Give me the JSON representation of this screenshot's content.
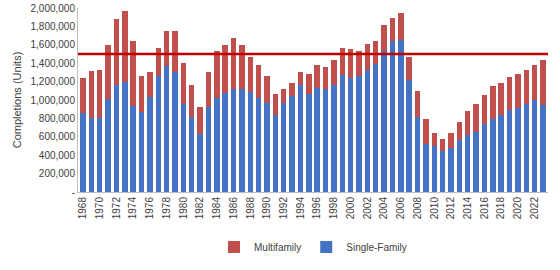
{
  "chart_data": {
    "type": "bar",
    "y_label": "Completions (Units)",
    "categories": [
      "1968",
      null,
      "1970",
      null,
      "1972",
      null,
      "1974",
      null,
      "1976",
      null,
      "1978",
      null,
      "1980",
      null,
      "1982",
      null,
      "1984",
      null,
      "1986",
      null,
      "1988",
      null,
      "1990",
      null,
      "1992",
      null,
      "1994",
      null,
      "1996",
      null,
      "1998",
      null,
      "2000",
      null,
      "2002",
      null,
      "2004",
      null,
      "2006",
      null,
      "2008",
      null,
      "2010",
      null,
      "2012",
      null,
      "2014",
      null,
      "2016",
      null,
      "2018",
      null,
      "2020",
      null,
      "2022",
      null
    ],
    "series": [
      {
        "name": "Single-Family",
        "color": "#4472c4",
        "values": [
          859000,
          807000,
          802000,
          1014000,
          1160000,
          1197000,
          940000,
          875000,
          1034000,
          1258000,
          1369000,
          1301000,
          957000,
          819000,
          632000,
          924000,
          1025000,
          1072000,
          1120000,
          1123000,
          1085000,
          1026000,
          966000,
          838000,
          964000,
          1039000,
          1160000,
          1066000,
          1129000,
          1116000,
          1160000,
          1270000,
          1242000,
          1256000,
          1325000,
          1386000,
          1532000,
          1636000,
          1654000,
          1218000,
          819000,
          520000,
          496000,
          447000,
          483000,
          569000,
          620000,
          648000,
          738000,
          795000,
          840000,
          887000,
          912000,
          961000,
          1005000,
          947000
        ]
      },
      {
        "name": "Multifamily",
        "color": "#c0504d",
        "values": [
          381000,
          503000,
          528000,
          586000,
          720000,
          773000,
          700000,
          385000,
          266000,
          302000,
          381000,
          449000,
          443000,
          341000,
          288000,
          376000,
          505000,
          528000,
          550000,
          477000,
          385000,
          354000,
          294000,
          222000,
          156000,
          141000,
          140000,
          214000,
          251000,
          244000,
          280000,
          300000,
          308000,
          274000,
          285000,
          254000,
          288000,
          254000,
          296000,
          252000,
          281000,
          270000,
          144000,
          133000,
          157000,
          191000,
          260000,
          312000,
          312000,
          355000,
          340000,
          363000,
          368000,
          369000,
          375000,
          493000
        ]
      }
    ],
    "stacked": true,
    "reference_line": 1500000,
    "ylim": [
      0,
      2000000
    ],
    "yticks": [
      {
        "value": 0,
        "label": "-"
      },
      {
        "value": 200000,
        "label": "200,000"
      },
      {
        "value": 400000,
        "label": "400,000"
      },
      {
        "value": 600000,
        "label": "600,000"
      },
      {
        "value": 800000,
        "label": "800,000"
      },
      {
        "value": 1000000,
        "label": "1,000,000"
      },
      {
        "value": 1200000,
        "label": "1,200,000"
      },
      {
        "value": 1400000,
        "label": "1,400,000"
      },
      {
        "value": 1600000,
        "label": "1,600,000"
      },
      {
        "value": 1800000,
        "label": "1,800,000"
      },
      {
        "value": 2000000,
        "label": "2,000,000"
      }
    ],
    "grid": false,
    "legend": "bottom"
  }
}
